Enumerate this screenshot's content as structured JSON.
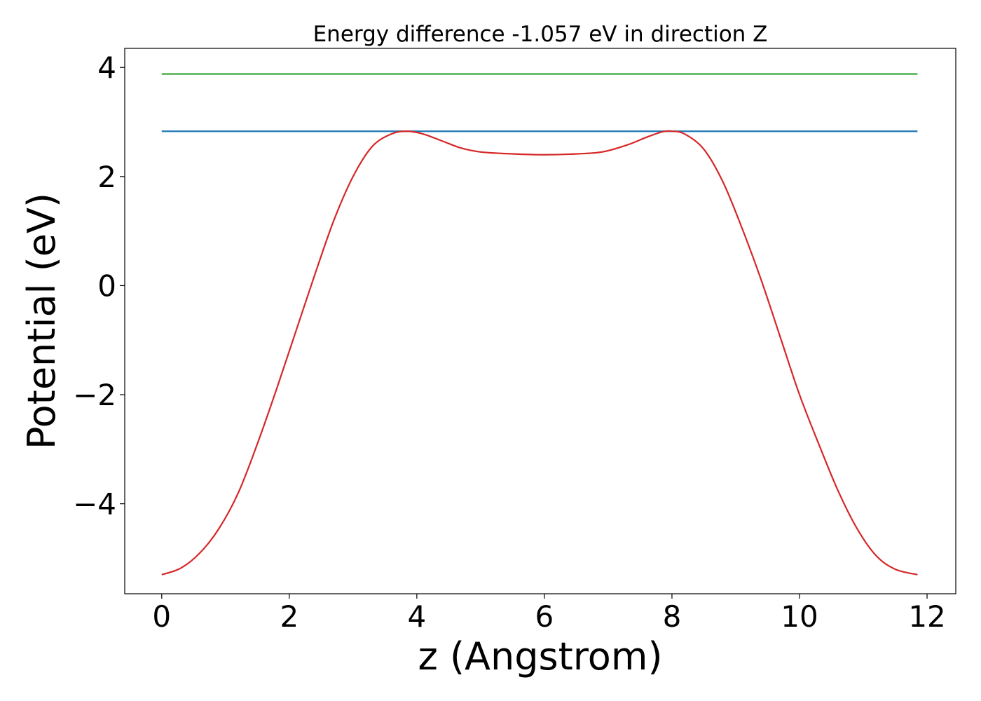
{
  "chart_data": {
    "type": "line",
    "title": "Energy difference -1.057 eV in direction Z",
    "xlabel": "z (Angstrom)",
    "ylabel": "Potential (eV)",
    "xlim": [
      -0.58,
      12.45
    ],
    "ylim": [
      -5.65,
      4.35
    ],
    "xticks": [
      0,
      2,
      4,
      6,
      8,
      10,
      12
    ],
    "yticks": [
      -4,
      -2,
      0,
      2,
      4
    ],
    "ytick_labels": [
      "−4",
      "−2",
      "0",
      "2",
      "4"
    ],
    "grid": false,
    "series": [
      {
        "color": "#2ca02c",
        "x": [
          0,
          11.85
        ],
        "y": [
          3.88,
          3.88
        ]
      },
      {
        "color": "#1f77b4",
        "x": [
          0,
          11.85
        ],
        "y": [
          2.83,
          2.83
        ]
      },
      {
        "color": "#d62728",
        "x": [
          0,
          0.3,
          0.6,
          0.9,
          1.2,
          1.5,
          1.8,
          2.1,
          2.4,
          2.7,
          3.0,
          3.3,
          3.6,
          3.85,
          4.1,
          4.4,
          4.7,
          5.0,
          5.4,
          5.9,
          6.4,
          6.9,
          7.3,
          7.6,
          7.85,
          8.0,
          8.2,
          8.5,
          8.8,
          9.1,
          9.4,
          9.7,
          10.0,
          10.3,
          10.6,
          10.9,
          11.2,
          11.5,
          11.85
        ],
        "y": [
          -5.3,
          -5.18,
          -4.9,
          -4.45,
          -3.8,
          -2.9,
          -1.9,
          -0.85,
          0.2,
          1.2,
          2.0,
          2.55,
          2.78,
          2.83,
          2.78,
          2.65,
          2.52,
          2.45,
          2.42,
          2.4,
          2.41,
          2.45,
          2.58,
          2.72,
          2.82,
          2.83,
          2.78,
          2.5,
          1.9,
          1.05,
          0.1,
          -0.95,
          -2.0,
          -2.9,
          -3.75,
          -4.45,
          -4.95,
          -5.2,
          -5.3
        ]
      }
    ]
  }
}
